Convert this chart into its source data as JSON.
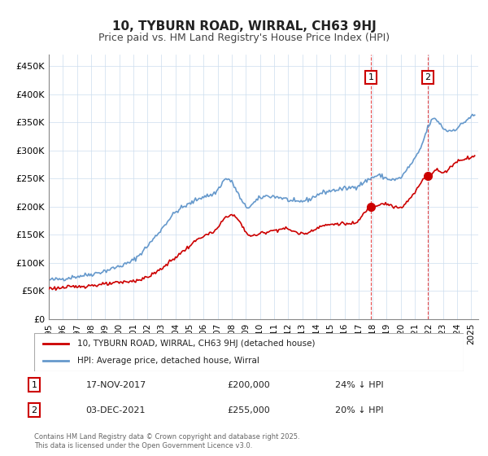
{
  "title": "10, TYBURN ROAD, WIRRAL, CH63 9HJ",
  "subtitle": "Price paid vs. HM Land Registry's House Price Index (HPI)",
  "title_fontsize": 11,
  "subtitle_fontsize": 9,
  "background_color": "#ffffff",
  "plot_bg_color": "#ffffff",
  "grid_color": "#ccddee",
  "xlabel": "",
  "ylabel": "",
  "ylim": [
    0,
    470000
  ],
  "yticks": [
    0,
    50000,
    100000,
    150000,
    200000,
    250000,
    300000,
    350000,
    400000,
    450000
  ],
  "ytick_labels": [
    "£0",
    "£50K",
    "£100K",
    "£150K",
    "£200K",
    "£250K",
    "£300K",
    "£350K",
    "£400K",
    "£450K"
  ],
  "xlim_start": 1995.0,
  "xlim_end": 2025.5,
  "xticks": [
    1995,
    1996,
    1997,
    1998,
    1999,
    2000,
    2001,
    2002,
    2003,
    2004,
    2005,
    2006,
    2007,
    2008,
    2009,
    2010,
    2011,
    2012,
    2013,
    2014,
    2015,
    2016,
    2017,
    2018,
    2019,
    2020,
    2021,
    2022,
    2023,
    2024,
    2025
  ],
  "sale1_date": 2017.88,
  "sale1_price": 200000,
  "sale1_label": "1",
  "sale2_date": 2021.92,
  "sale2_price": 255000,
  "sale2_label": "2",
  "red_line_color": "#cc0000",
  "blue_line_color": "#6699cc",
  "marker_color": "#cc0000",
  "vline_color": "#dd0000",
  "legend_label_red": "10, TYBURN ROAD, WIRRAL, CH63 9HJ (detached house)",
  "legend_label_blue": "HPI: Average price, detached house, Wirral",
  "annotation1_date": "17-NOV-2017",
  "annotation1_price": "£200,000",
  "annotation1_hpi": "24% ↓ HPI",
  "annotation2_date": "03-DEC-2021",
  "annotation2_price": "£255,000",
  "annotation2_hpi": "20% ↓ HPI",
  "footer": "Contains HM Land Registry data © Crown copyright and database right 2025.\nThis data is licensed under the Open Government Licence v3.0."
}
